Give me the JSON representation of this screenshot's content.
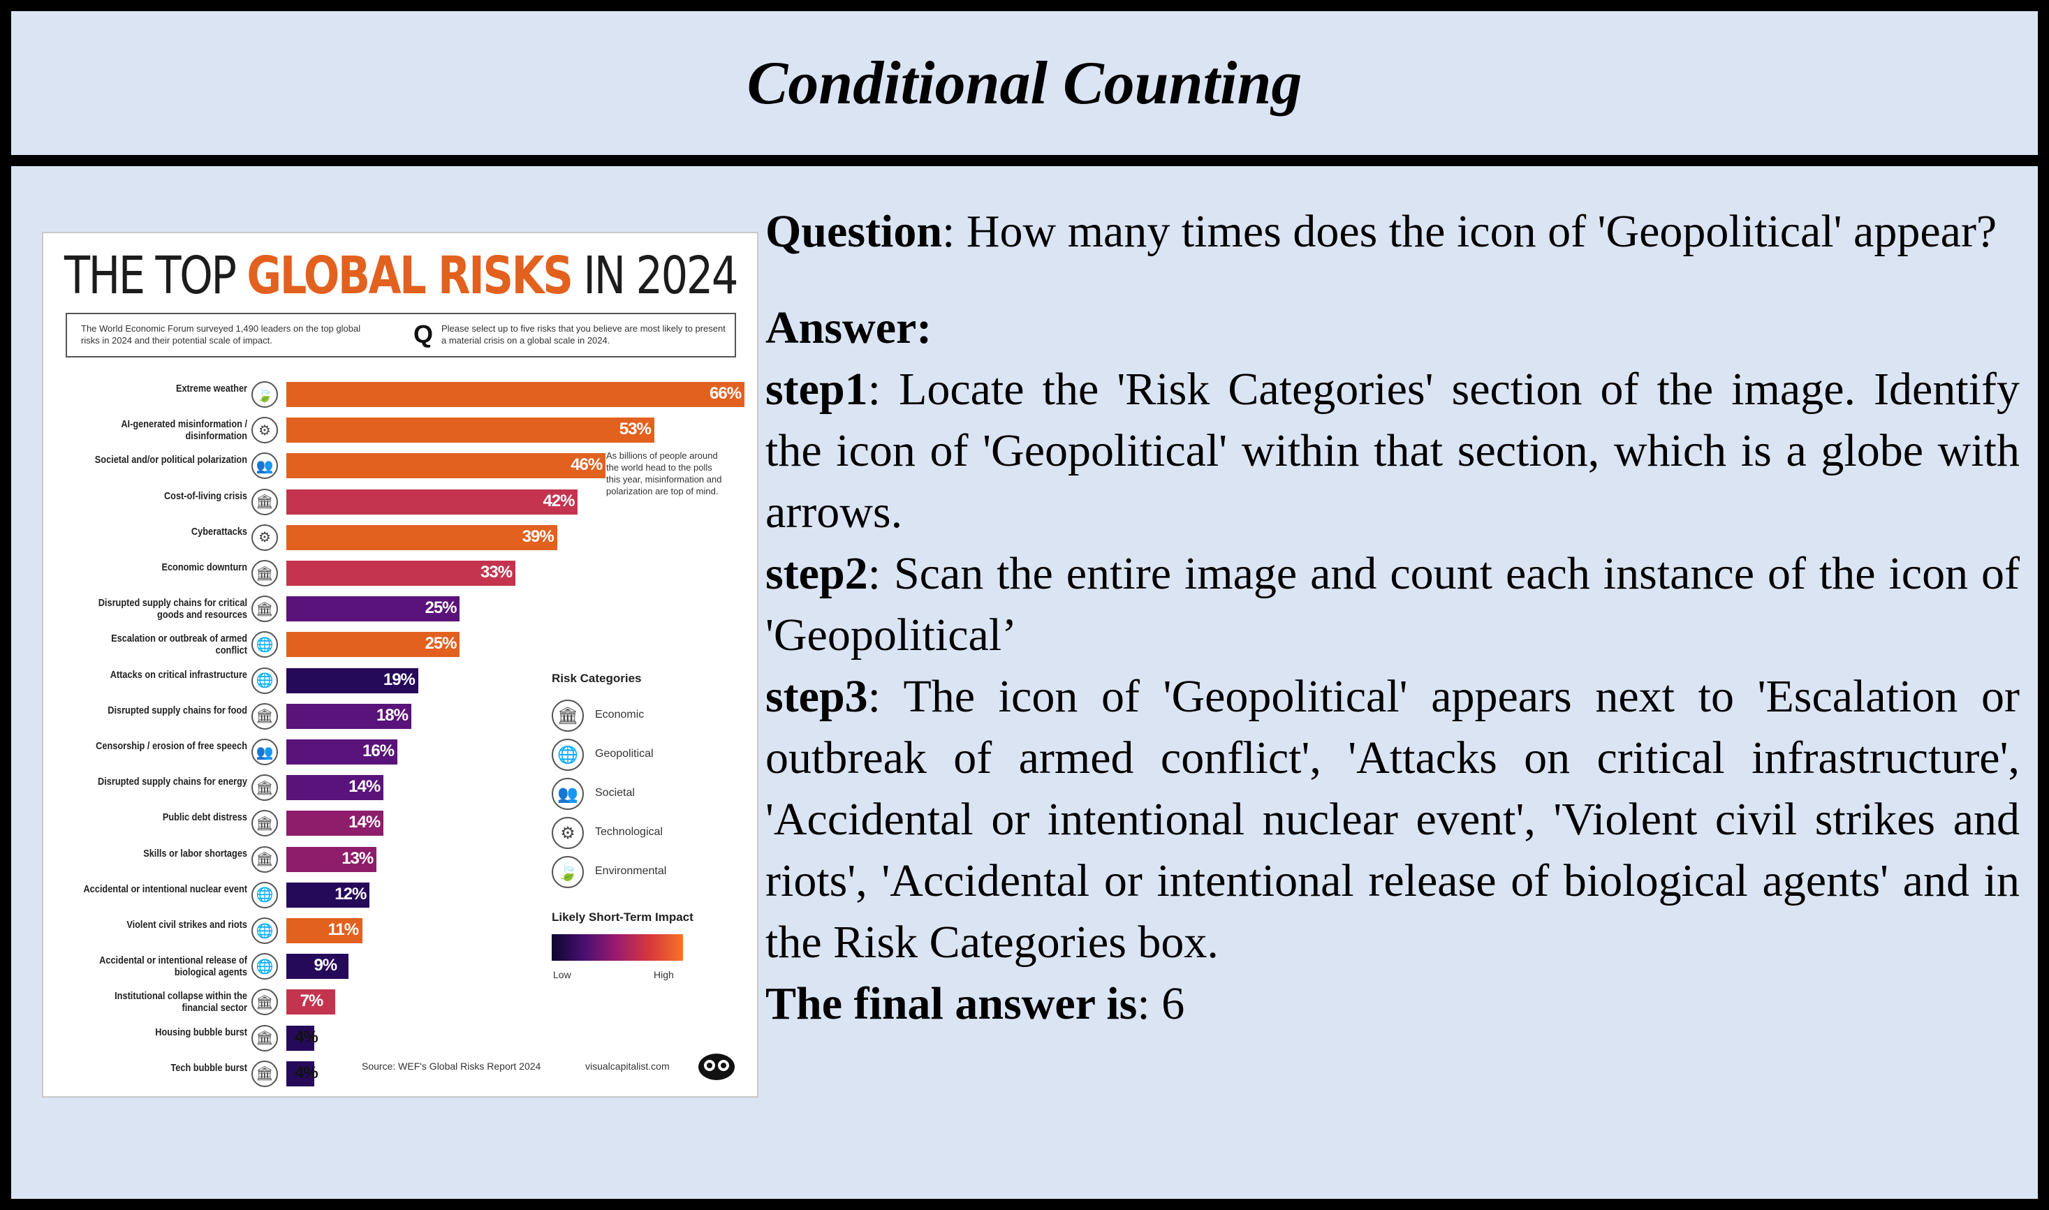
{
  "header": {
    "title": "Conditional Counting"
  },
  "qa": {
    "question_label": "Question",
    "question_text": ": How many times does the icon of 'Geopolitical' appear?",
    "answer_label": "Answer:",
    "step1_label": "step1",
    "step1_text": ": Locate the 'Risk Categories' section of the image. Identify the icon of 'Geopolitical' within that section, which is a globe with arrows.",
    "step2_label": "step2",
    "step2_text": ": Scan the entire image and count each instance of the icon of 'Geopolitical’",
    "step3_label": "step3",
    "step3_text": ": The icon of 'Geopolitical' appears next to 'Escalation or outbreak of armed conflict', 'Attacks on critical infrastructure', 'Accidental or intentional nuclear event', 'Violent civil strikes and riots', 'Accidental or intentional release of biological agents' and in the Risk Categories box.",
    "final_label": "The final answer is",
    "final_text": ": 6"
  },
  "infographic": {
    "title_pre": "THE TOP ",
    "title_highlight": "GLOBAL RISKS",
    "title_post": " IN 2024",
    "intro": "The World Economic Forum surveyed 1,490 leaders on the top global risks in 2024 and their potential scale of impact.",
    "q_glyph": "Q",
    "q_text": "Please select up to five risks that you believe are most likely to present a material crisis on a global scale in 2024.",
    "note": "As billions of people around the world head to the polls this year, misinformation and polarization are top of mind.",
    "legend_title": "Risk Categories",
    "impact_title": "Likely Short-Term Impact",
    "impact_low": "Low",
    "impact_high": "High",
    "source": "Source: WEF's Global Risks Report 2024",
    "site": "visualcapitalist.com"
  },
  "colors": {
    "orange": "#e2611f",
    "red": "#c4344f",
    "magenta": "#8e1d6b",
    "purple": "#5a137a",
    "deep": "#3a0d6b",
    "navy": "#260a5a"
  },
  "chart_data": {
    "type": "bar",
    "orientation": "horizontal",
    "title": "THE TOP GLOBAL RISKS IN 2024",
    "unit": "%",
    "xlim": [
      0,
      66
    ],
    "categories": [
      "Extreme weather",
      "AI-generated misinformation / disinformation",
      "Societal and/or political polarization",
      "Cost-of-living crisis",
      "Cyberattacks",
      "Economic downturn",
      "Disrupted supply chains for critical goods and resources",
      "Escalation or outbreak of armed conflict",
      "Attacks on critical infrastructure",
      "Disrupted supply chains for food",
      "Censorship / erosion of free speech",
      "Disrupted supply chains for energy",
      "Public debt distress",
      "Skills or labor shortages",
      "Accidental or intentional nuclear event",
      "Violent civil strikes and riots",
      "Accidental or intentional release of biological agents",
      "Institutional collapse within the financial sector",
      "Housing bubble burst",
      "Tech bubble burst"
    ],
    "values": [
      66,
      53,
      46,
      42,
      39,
      33,
      25,
      25,
      19,
      18,
      16,
      14,
      14,
      13,
      12,
      11,
      9,
      7,
      4,
      4
    ],
    "value_labels": [
      "66%",
      "53%",
      "46%",
      "42%",
      "39%",
      "33%",
      "25%",
      "25%",
      "19%",
      "18%",
      "16%",
      "14%",
      "14%",
      "13%",
      "12%",
      "11%",
      "9%",
      "7%",
      "4%",
      "4%"
    ],
    "risk_category": [
      "Environmental",
      "Technological",
      "Societal",
      "Economic",
      "Technological",
      "Economic",
      "Economic",
      "Geopolitical",
      "Geopolitical",
      "Economic",
      "Societal",
      "Economic",
      "Economic",
      "Economic",
      "Geopolitical",
      "Geopolitical",
      "Geopolitical",
      "Economic",
      "Economic",
      "Economic"
    ],
    "impact_color": [
      "orange",
      "orange",
      "orange",
      "red",
      "orange",
      "red",
      "purple",
      "orange",
      "navy",
      "purple",
      "purple",
      "purple",
      "magenta",
      "magenta",
      "navy",
      "orange",
      "navy",
      "red",
      "navy",
      "navy"
    ],
    "legend": [
      "Economic",
      "Geopolitical",
      "Societal",
      "Technological",
      "Environmental"
    ]
  },
  "icons": {
    "Economic": "building-icon",
    "Geopolitical": "globe-arrows-icon",
    "Societal": "people-icon",
    "Technological": "circuit-icon",
    "Environmental": "leaf-icon"
  }
}
